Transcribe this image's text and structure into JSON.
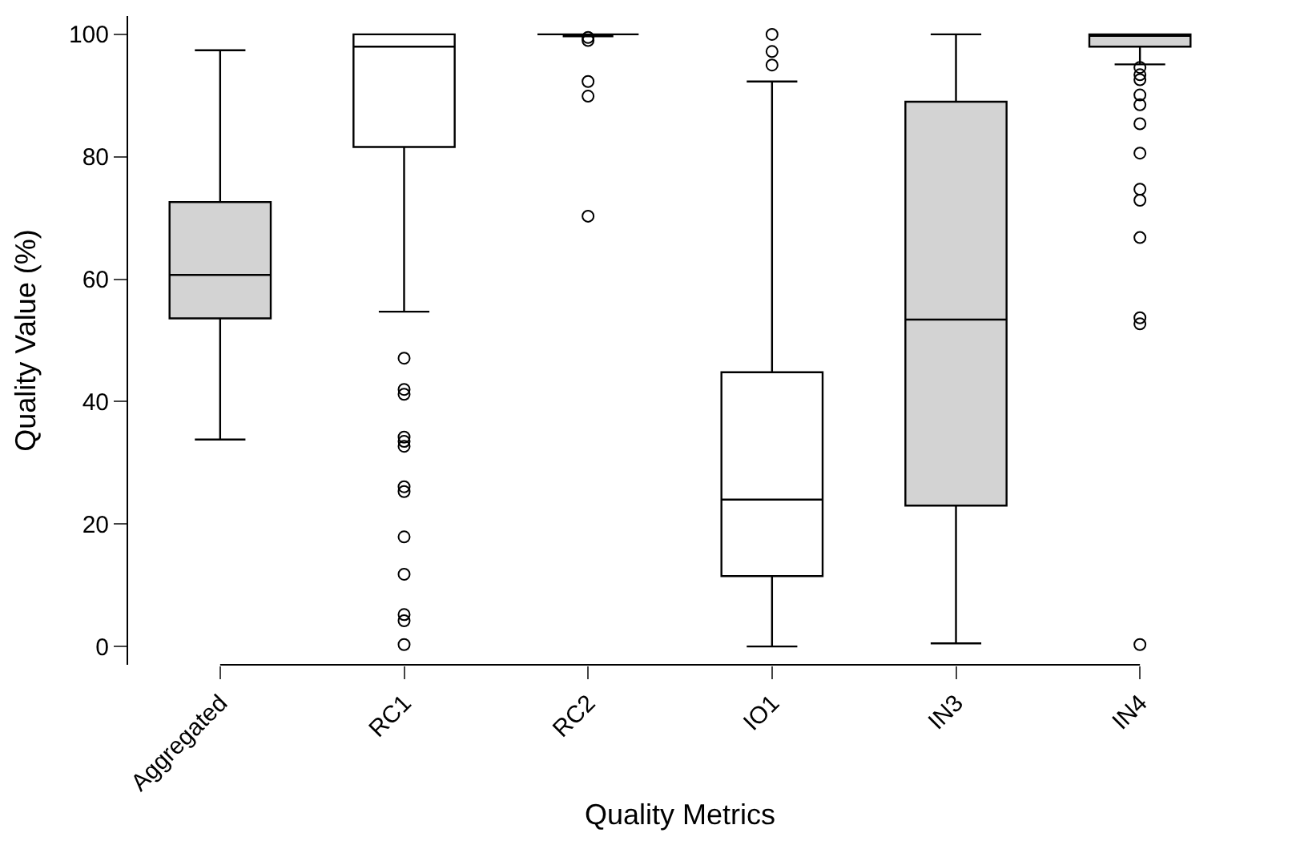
{
  "chart_data": {
    "type": "box",
    "xlabel": "Quality Metrics",
    "ylabel": "Quality Value (%)",
    "categories": [
      "Aggregated",
      "RC1",
      "RC2",
      "IO1",
      "IN3",
      "IN4"
    ],
    "colors": [
      "#d3d3d3",
      "#ffffff",
      "#000000",
      "#ffffff",
      "#d3d3d3",
      "#d3d3d3"
    ],
    "boxes": [
      {
        "low": 33.8,
        "q1": 53.6,
        "median": 60.7,
        "q3": 72.6,
        "high": 97.4
      },
      {
        "low": 54.7,
        "q1": 81.6,
        "median": 98,
        "q3": 100,
        "high": 100,
        "outliers": [
          47.1,
          42,
          41.2,
          34.2,
          33.5,
          32.7,
          26.1,
          25.3,
          17.9,
          11.8,
          5.2,
          4.2,
          0.3
        ]
      },
      {
        "low": 99.7,
        "q1": 100,
        "median": 100,
        "q3": 100,
        "high": 100,
        "outliers": [
          99.5,
          99,
          92.3,
          89.9,
          70.3
        ]
      },
      {
        "low": 0,
        "q1": 11.5,
        "median": 24,
        "q3": 44.8,
        "high": 92.3,
        "outliers": [
          100,
          97.2,
          95
        ]
      },
      {
        "low": 0.5,
        "q1": 23,
        "median": 53.4,
        "q3": 89,
        "high": 100
      },
      {
        "low": 95.1,
        "q1": 98,
        "median": 100,
        "q3": 100,
        "high": 100,
        "outliers": [
          94.6,
          93.4,
          92.6,
          90.1,
          88.5,
          85.4,
          80.6,
          74.7,
          72.9,
          66.8,
          53.7,
          52.7,
          0.3
        ]
      }
    ],
    "ylim": [
      -3,
      103
    ],
    "yticks": [
      0,
      20,
      40,
      60,
      80,
      100
    ],
    "marker": "circle"
  }
}
